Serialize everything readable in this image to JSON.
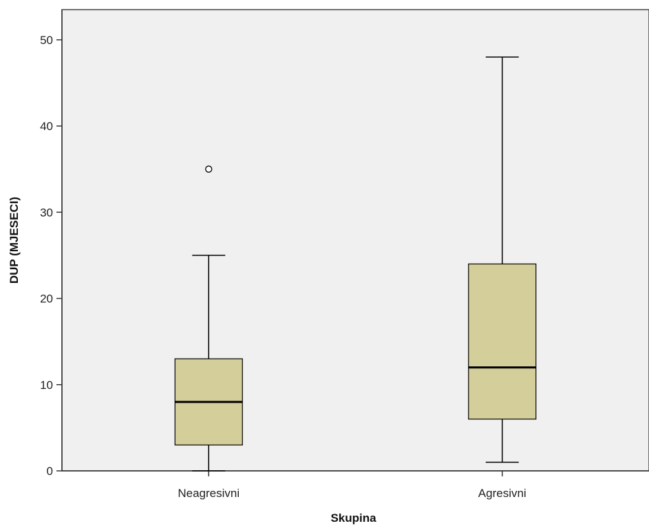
{
  "chart_data": {
    "type": "boxplot",
    "title": "",
    "xlabel": "Skupina",
    "ylabel": "DUP (MJESECI)",
    "ylim": [
      0,
      53.5
    ],
    "yticks": [
      0,
      10,
      20,
      30,
      40,
      50
    ],
    "categories": [
      "Neagresivni",
      "Agresivni"
    ],
    "boxes": [
      {
        "category": "Neagresivni",
        "min": 0,
        "q1": 3,
        "median": 8,
        "q3": 13,
        "max": 25,
        "outliers": [
          35
        ]
      },
      {
        "category": "Agresivni",
        "min": 1,
        "q1": 6,
        "median": 12,
        "q3": 24,
        "max": 48,
        "outliers": []
      }
    ],
    "grid": false,
    "colors": {
      "plot_background": "#f0f0f0",
      "box_fill": "#d4ce9a",
      "stroke": "#000000"
    }
  }
}
